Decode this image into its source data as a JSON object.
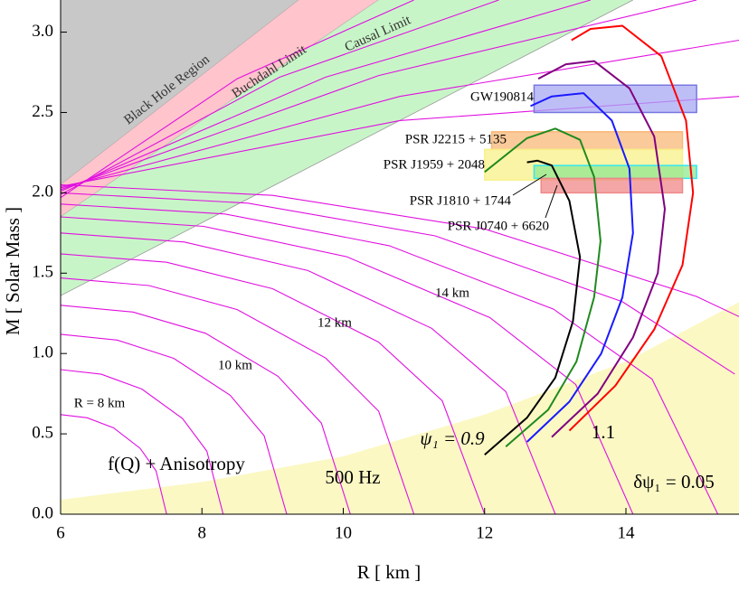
{
  "chart_data": {
    "type": "line",
    "xlabel": "R  [ km ]",
    "ylabel": "M  [ Solar  Mass ]",
    "xlim": [
      6,
      15.6
    ],
    "ylim": [
      0,
      3.2
    ],
    "xticks": [
      6,
      8,
      10,
      12,
      14
    ],
    "yticks": [
      {
        "value": 0,
        "label": "0.0"
      },
      0.5,
      {
        "value": 1,
        "label": "1.0"
      },
      1.5,
      {
        "value": 2,
        "label": "2.0"
      },
      2.5,
      {
        "value": 3,
        "label": "3.0"
      }
    ],
    "regions": [
      {
        "name": "Black Hole Region",
        "color": "#c8c8c8",
        "x": [
          6,
          9.37
        ],
        "values": [
          2.05,
          3.2
        ]
      },
      {
        "name": "Buchdahl  Limit",
        "color": "#ffc4cc",
        "x": [
          6,
          10.5
        ],
        "values": [
          1.85,
          3.2
        ]
      },
      {
        "name": "Causal Limit",
        "color": "#c8f5c8",
        "x": [
          6,
          14.1
        ],
        "values": [
          1.36,
          3.2
        ]
      }
    ],
    "shaded": {
      "label": "500 Hz",
      "color": "#fbf8c4",
      "x": [
        6,
        8,
        10,
        12,
        14,
        15.6
      ],
      "values": [
        0.09,
        0.2,
        0.36,
        0.62,
        0.95,
        1.32
      ]
    },
    "contours": {
      "color": "#e010e0",
      "lines": [
        {
          "x": [
            6,
            6.375,
            6.75,
            7.125,
            7.35,
            7.5
          ],
          "values": [
            0.62,
            0.6,
            0.537,
            0.41,
            0.27,
            0
          ]
        },
        {
          "x": [
            6,
            6.575,
            7.15,
            7.725,
            8.07,
            8.3
          ],
          "values": [
            0.9,
            0.871,
            0.779,
            0.595,
            0.392,
            0
          ]
        },
        {
          "x": [
            6,
            6.8,
            7.6,
            8.4,
            8.88,
            9.2
          ],
          "values": [
            1.12,
            1.084,
            0.97,
            0.74,
            0.488,
            0
          ]
        },
        {
          "x": [
            6,
            7.025,
            8.05,
            9.075,
            9.69,
            10.1
          ],
          "values": [
            1.3,
            1.258,
            1.126,
            0.859,
            0.567,
            0
          ]
        },
        {
          "x": [
            6,
            7.25,
            8.5,
            9.75,
            10.5,
            11
          ],
          "values": [
            1.47,
            1.423,
            1.273,
            0.972,
            0.641,
            0
          ]
        },
        {
          "x": [
            6,
            7.5,
            9,
            10.5,
            11.4,
            12
          ],
          "values": [
            1.62,
            1.568,
            1.403,
            1.071,
            0.706,
            0
          ]
        },
        {
          "x": [
            6,
            7.75,
            9.5,
            11.25,
            12.3,
            13
          ],
          "values": [
            1.75,
            1.694,
            1.516,
            1.157,
            0.763,
            0
          ]
        },
        {
          "x": [
            6,
            8.025,
            10.05,
            12.075,
            13.29,
            14.1
          ],
          "values": [
            1.85,
            1.791,
            1.602,
            1.223,
            0.807,
            0
          ]
        },
        {
          "x": [
            6,
            8.325,
            10.65,
            12.975,
            14.37,
            15.3
          ],
          "values": [
            1.93,
            1.868,
            1.671,
            1.276,
            0.841,
            0
          ]
        },
        {
          "x": [
            6,
            8.65,
            11.3,
            13.95,
            15.54
          ],
          "values": [
            2.0,
            1.936,
            1.732,
            1.322,
            0.872
          ]
        },
        {
          "x": [
            6,
            9,
            12,
            15,
            15.6
          ],
          "values": [
            2.05,
            1.984,
            1.775,
            1.355,
            1.23
          ]
        },
        {
          "x": [
            6,
            8.5,
            11
          ],
          "values": [
            1.97,
            2.71,
            3.2
          ]
        },
        {
          "x": [
            6,
            9.1,
            12.2
          ],
          "values": [
            1.99,
            2.72,
            3.2
          ]
        },
        {
          "x": [
            6,
            9.75,
            13.5
          ],
          "values": [
            2.01,
            2.72,
            3.2
          ]
        },
        {
          "x": [
            6,
            10.5,
            15
          ],
          "values": [
            2.02,
            2.73,
            3.2
          ]
        },
        {
          "x": [
            6,
            10.8,
            15.6
          ],
          "values": [
            2.03,
            2.6,
            2.95
          ]
        },
        {
          "x": [
            6,
            10.8,
            15.6
          ],
          "values": [
            2.04,
            2.45,
            2.6
          ]
        }
      ]
    },
    "bands": [
      {
        "name": "GW190814",
        "color": "#a8a8f4",
        "stroke": "#7878e0",
        "x": [
          12.7,
          15.0
        ],
        "y": [
          2.5,
          2.67
        ]
      },
      {
        "name": "PSR J2215 + 5135",
        "color": "#f8b878",
        "stroke": "#f8b878",
        "x": [
          12.1,
          14.8
        ],
        "y": [
          2.27,
          2.38
        ]
      },
      {
        "name": "PSR J1959 + 2048",
        "color": "#f8f088",
        "stroke": "#f8f088",
        "x": [
          12.0,
          14.8
        ],
        "y": [
          2.08,
          2.27
        ]
      },
      {
        "name": "PSR J1810 + 1744",
        "color": "#90e890",
        "stroke": "#30e8f0",
        "x": [
          12.7,
          15.0
        ],
        "y": [
          2.09,
          2.17
        ]
      },
      {
        "name": "PSR J0740 + 6620",
        "color": "#f08888",
        "stroke": "#f08888",
        "x": [
          12.8,
          14.8
        ],
        "y": [
          2.0,
          2.09
        ]
      }
    ],
    "series": [
      {
        "color": "#000000",
        "x": [
          12.0,
          12.6,
          13.0,
          13.25,
          13.35,
          13.2,
          12.95,
          12.75,
          12.6
        ],
        "values": [
          0.37,
          0.6,
          0.85,
          1.2,
          1.6,
          1.95,
          2.17,
          2.2,
          2.19
        ]
      },
      {
        "color": "#1f8a1f",
        "x": [
          12.3,
          12.9,
          13.3,
          13.55,
          13.64,
          13.55,
          13.35,
          13.0,
          12.6,
          12.0
        ],
        "values": [
          0.42,
          0.65,
          0.95,
          1.35,
          1.7,
          2.1,
          2.33,
          2.4,
          2.34,
          2.13
        ]
      },
      {
        "color": "#1a1aff",
        "x": [
          12.6,
          13.2,
          13.65,
          13.95,
          14.1,
          14.05,
          13.8,
          13.4,
          12.95,
          12.65
        ],
        "values": [
          0.45,
          0.7,
          1.0,
          1.35,
          1.75,
          2.15,
          2.45,
          2.62,
          2.6,
          2.54
        ]
      },
      {
        "color": "#800080",
        "x": [
          12.95,
          13.6,
          14.1,
          14.45,
          14.55,
          14.4,
          14.05,
          13.55,
          13.15,
          12.76
        ],
        "values": [
          0.48,
          0.75,
          1.1,
          1.5,
          1.9,
          2.35,
          2.65,
          2.82,
          2.8,
          2.71
        ]
      },
      {
        "color": "#ff0000",
        "x": [
          13.2,
          13.85,
          14.4,
          14.8,
          14.95,
          14.85,
          14.5,
          13.95,
          13.5,
          13.23
        ],
        "values": [
          0.52,
          0.8,
          1.15,
          1.55,
          2.0,
          2.45,
          2.85,
          3.04,
          3.02,
          2.95
        ]
      }
    ],
    "annotations": [
      "f(Q) + Anisotropy",
      "R = 8 km",
      "10 km",
      "12 km",
      "14 km",
      "ψ₁ = 0.9",
      "1.1",
      "δψ₁ = 0.05"
    ]
  }
}
